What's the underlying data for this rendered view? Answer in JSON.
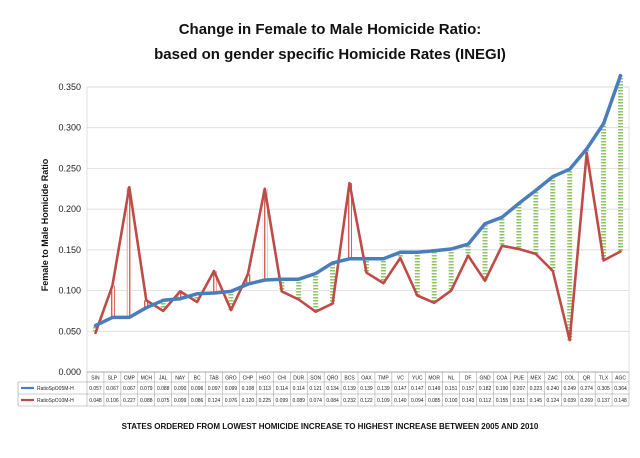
{
  "chart_data": {
    "type": "line",
    "title_line1": "Change in Female to Male Homicide Ratio:",
    "title_line2": "based on gender specific Homicide Rates (INEGI)",
    "ylabel": "Female to Male Homicide Ratio",
    "xlabel": "STATES ORDERED FROM LOWEST HOMICIDE INCREASE TO HIGHEST INCREASE BETWEEN 2005 AND 2010",
    "ylim": [
      0,
      0.35
    ],
    "yticks": [
      "0.000",
      "0.050",
      "0.100",
      "0.150",
      "0.200",
      "0.250",
      "0.300",
      "0.350"
    ],
    "categories": [
      "SIN",
      "SLP",
      "CMP",
      "MCH",
      "JAL",
      "NAY",
      "BC",
      "TAB",
      "GRO",
      "CHP",
      "HGO",
      "CHI",
      "DUR",
      "SON",
      "QRO",
      "BCS",
      "OAX",
      "TMP",
      "VC",
      "YUC",
      "MOR",
      "NL",
      "DF",
      "GND",
      "COA",
      "PUE",
      "MEX",
      "ZAC",
      "COL",
      "QR",
      "TLX",
      "AGC"
    ],
    "series": [
      {
        "name": "RatioSpO05M-H",
        "color": "#4a7ebb",
        "labels": [
          "0.057",
          "0.067",
          "0.067",
          "0.079",
          "0.088",
          "0.090",
          "0.096",
          "0.097",
          "0.099",
          "0.108",
          "0.113",
          "0.114",
          "0.114",
          "0.121",
          "0.134",
          "0.139",
          "0.139",
          "0.139",
          "0.147",
          "0.147",
          "0.149",
          "0.151",
          "0.157",
          "0.182",
          "0.190",
          "0.207",
          "0.223",
          "0.240",
          "0.249",
          "0.274",
          "0.305",
          "0.364"
        ],
        "values": [
          0.057,
          0.067,
          0.067,
          0.079,
          0.088,
          0.09,
          0.096,
          0.097,
          0.099,
          0.108,
          0.113,
          0.114,
          0.114,
          0.121,
          0.134,
          0.139,
          0.139,
          0.139,
          0.147,
          0.147,
          0.149,
          0.151,
          0.157,
          0.182,
          0.19,
          0.207,
          0.223,
          0.24,
          0.249,
          0.274,
          0.305,
          0.364
        ]
      },
      {
        "name": "RatioSpO10M-H",
        "color": "#be4b48",
        "labels": [
          "0.048",
          "0.106",
          "0.227",
          "0.088",
          "0.075",
          "0.099",
          "0.086",
          "0.124",
          "0.076",
          "0.120",
          "0.225",
          "0.099",
          "0.089",
          "0.074",
          "0.084",
          "0.232",
          "0.122",
          "0.109",
          "0.140",
          "0.094",
          "0.085",
          "0.100",
          "0.143",
          "0.112",
          "0.155",
          "0.151",
          "0.145",
          "0.124",
          "0.039",
          "0.269",
          "0.137",
          "0.148"
        ],
        "values": [
          0.048,
          0.106,
          0.227,
          0.088,
          0.075,
          0.099,
          0.086,
          0.124,
          0.076,
          0.12,
          0.225,
          0.099,
          0.089,
          0.074,
          0.084,
          0.232,
          0.122,
          0.109,
          0.14,
          0.094,
          0.085,
          0.1,
          0.143,
          0.112,
          0.155,
          0.151,
          0.145,
          0.124,
          0.039,
          0.269,
          0.137,
          0.148
        ]
      }
    ],
    "change_bars": {
      "increase_color": "#d6605a",
      "decrease_color": "#8cc466"
    }
  }
}
